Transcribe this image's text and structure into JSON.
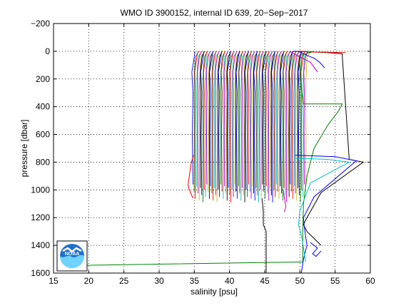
{
  "chart_data": {
    "type": "line",
    "title": "WMO ID 3900152, internal ID 639, 20−Sep−2017",
    "xlabel": "salinity [psu]",
    "ylabel": "pressure [dbar]",
    "xlim": [
      15,
      60
    ],
    "ylim": [
      -200,
      1600
    ],
    "y_reversed": true,
    "grid": true,
    "grid_style": "dotted",
    "xticks": [
      15,
      20,
      25,
      30,
      35,
      40,
      45,
      50,
      55,
      60
    ],
    "yticks": [
      -200,
      0,
      200,
      400,
      600,
      800,
      1000,
      1200,
      1400,
      1600
    ],
    "ytick_labels": [
      "−200",
      "0",
      "200",
      "400",
      "600",
      "800",
      "1000",
      "1200",
      "1400",
      "1600"
    ],
    "logo": "NOAA",
    "profile_colors": [
      "#0000ff",
      "#008000",
      "#ff0000",
      "#00bfbf",
      "#bf00bf",
      "#bfbf00",
      "#000000"
    ],
    "vertical_profiles": {
      "x_start": 34.8,
      "x_end": 50.8,
      "count": 90,
      "surface_pressure": 0,
      "bottom_pressure_min": 960,
      "bottom_pressure_max": 1090
    },
    "series": [
      {
        "color": "#008000",
        "x": [
          52,
          50,
          50,
          50.5,
          56,
          55.5,
          54,
          52,
          51,
          50.5,
          50.4,
          50.4,
          50.4,
          18.5
        ],
        "y": [
          0,
          30,
          200,
          380,
          380,
          430,
          530,
          700,
          900,
          1100,
          1300,
          1450,
          1520,
          1545
        ]
      },
      {
        "color": "#000000",
        "x": [
          49,
          54,
          56,
          57,
          59,
          53,
          51,
          50.5,
          51,
          52,
          53
        ],
        "y": [
          0,
          10,
          18,
          780,
          800,
          1020,
          1200,
          1250,
          1300,
          1350,
          1400
        ]
      },
      {
        "color": "#0000ff",
        "x": [
          49.3,
          55,
          58,
          52,
          50.5,
          50.6,
          51,
          50.5,
          50.2
        ],
        "y": [
          750,
          760,
          790,
          1050,
          1200,
          1260,
          1400,
          1500,
          1600
        ]
      },
      {
        "color": "#00bfbf",
        "x": [
          49.3,
          54,
          57,
          51.5,
          50,
          49.8,
          50.3,
          50.6,
          50.8
        ],
        "y": [
          770,
          780,
          800,
          950,
          1150,
          1250,
          1350,
          1450,
          1520
        ]
      },
      {
        "color": "#000000",
        "x": [
          44.6,
          44.8,
          44.8,
          45.2,
          45.2
        ],
        "y": [
          1060,
          1150,
          1250,
          1300,
          1600
        ]
      },
      {
        "color": "#ff0000",
        "x": [
          34.9,
          34.7,
          34.5,
          34.3,
          34.1,
          34.3,
          34.8
        ],
        "y": [
          750,
          780,
          820,
          900,
          960,
          1000,
          1060
        ]
      },
      {
        "color": "#bf00bf",
        "x": [
          47.6,
          47.8,
          48,
          47.8
        ],
        "y": [
          1000,
          1060,
          1120,
          1160
        ]
      },
      {
        "color": "#0000ff",
        "x": [
          51.5,
          52.5,
          51.8,
          52.3,
          53
        ],
        "y": [
          1380,
          1420,
          1460,
          1480,
          1440
        ]
      },
      {
        "color": "#0000ff",
        "x": [
          49.8,
          51,
          52,
          52.8,
          53.5
        ],
        "y": [
          0,
          30,
          50,
          80,
          120
        ]
      },
      {
        "color": "#ff0000",
        "x": [
          50,
          52,
          54.5,
          56.5
        ],
        "y": [
          0,
          5,
          8,
          10
        ]
      },
      {
        "color": "#bf00bf",
        "x": [
          48.5,
          50,
          51.5,
          52.5
        ],
        "y": [
          0,
          40,
          80,
          150
        ]
      }
    ]
  }
}
